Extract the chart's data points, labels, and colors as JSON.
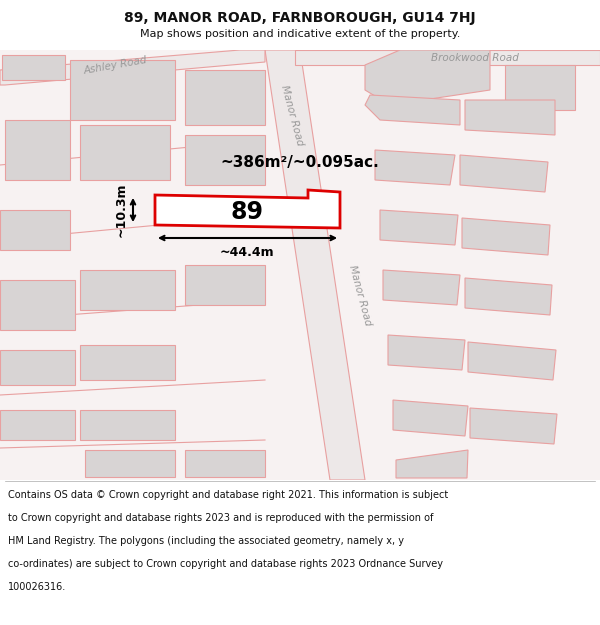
{
  "title_line1": "89, MANOR ROAD, FARNBOROUGH, GU14 7HJ",
  "title_line2": "Map shows position and indicative extent of the property.",
  "footer_text": "Contains OS data © Crown copyright and database right 2021. This information is subject to Crown copyright and database rights 2023 and is reproduced with the permission of HM Land Registry. The polygons (including the associated geometry, namely x, y co-ordinates) are subject to Crown copyright and database rights 2023 Ordnance Survey 100026316.",
  "area_text": "~386m²/~0.095ac.",
  "width_text": "~44.4m",
  "height_text": "~10.3m",
  "number_text": "89",
  "road_label_manor": "Manor Road",
  "road_label_ashley": "Ashley Road",
  "road_label_brookwood": "Brookwood Road",
  "map_bg": "#f7f2f2",
  "block_fill": "#d8d4d4",
  "block_edge": "#e8a0a0",
  "road_edge": "#e8a0a0",
  "red_line": "#dd0000",
  "prop_fill": "#ffffff",
  "white": "#ffffff",
  "title_fs": 10,
  "subtitle_fs": 8,
  "footer_fs": 7
}
